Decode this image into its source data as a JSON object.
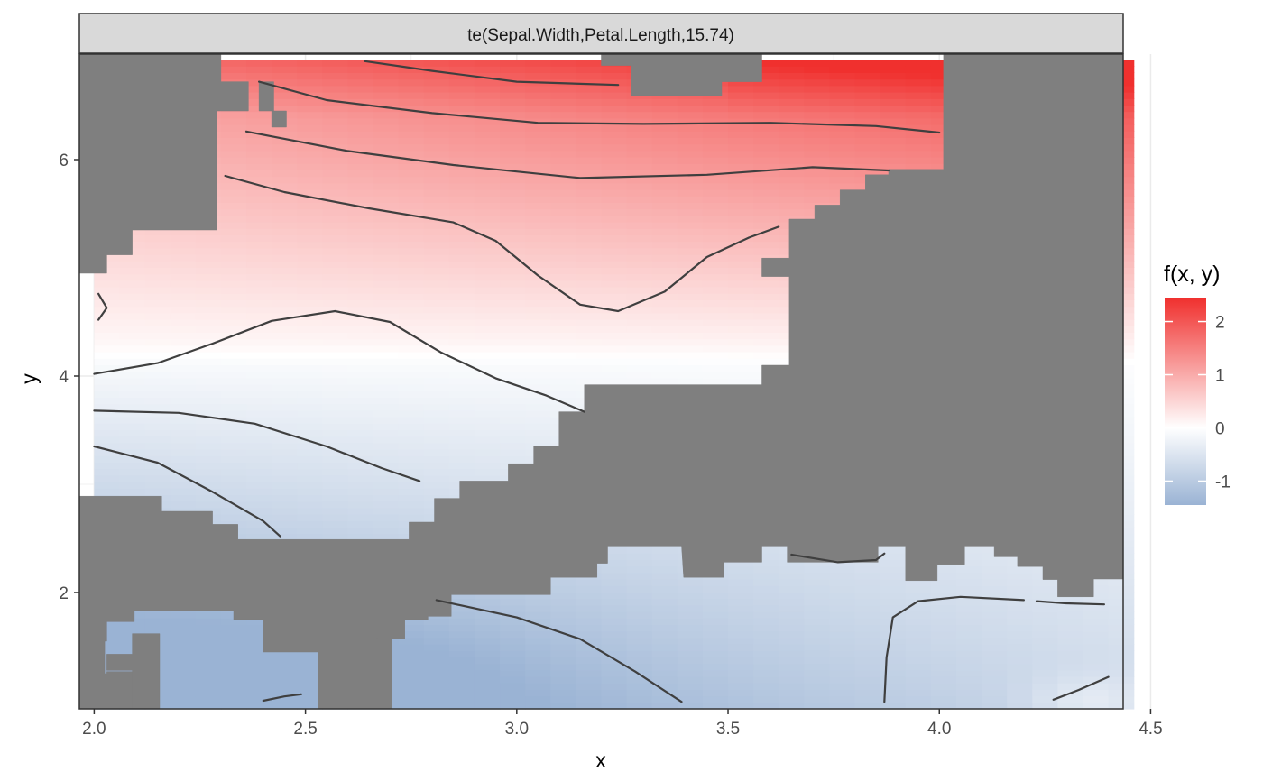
{
  "chart_data": {
    "type": "heatmap",
    "subtype": "smooth-term-contour",
    "facet_label": "te(Sepal.Width,Petal.Length,15.74)",
    "xlabel": "x",
    "ylabel": "y",
    "xlim": [
      1.965,
      4.435
    ],
    "ylim": [
      0.925,
      6.975
    ],
    "x_ticks": [
      2.0,
      2.5,
      3.0,
      3.5,
      4.0,
      4.5
    ],
    "x_tick_labels": [
      "2.0",
      "2.5",
      "3.0",
      "3.5",
      "4.0",
      "4.5"
    ],
    "y_ticks": [
      2,
      4,
      6
    ],
    "y_tick_labels": [
      "2",
      "4",
      "6"
    ],
    "grid": true,
    "grid_step": 0.06,
    "masked_color": "#7f7f7f",
    "legend": {
      "title": "f(x, y)",
      "position": "right",
      "min": -1.45,
      "max": 2.45,
      "ticks": [
        -1,
        0,
        1,
        2
      ],
      "tick_labels": [
        "-1",
        "0",
        "1",
        "2"
      ],
      "low_color": "#9ab3d4",
      "mid_color": "#ffffff",
      "high_color": "#f0302e"
    },
    "masked_regions": [
      [
        [
          1.965,
          6.975
        ],
        [
          2.3,
          6.975
        ],
        [
          2.3,
          6.72
        ],
        [
          2.365,
          6.72
        ],
        [
          2.365,
          6.45
        ],
        [
          2.29,
          6.45
        ],
        [
          2.29,
          5.35
        ],
        [
          2.09,
          5.35
        ],
        [
          2.09,
          5.12
        ],
        [
          2.03,
          5.12
        ],
        [
          2.03,
          4.95
        ],
        [
          1.965,
          4.95
        ]
      ],
      [
        [
          2.39,
          6.72
        ],
        [
          2.39,
          6.45
        ],
        [
          2.425,
          6.45
        ],
        [
          2.425,
          6.72
        ]
      ],
      [
        [
          2.42,
          6.45
        ],
        [
          2.42,
          6.3
        ],
        [
          2.455,
          6.3
        ],
        [
          2.455,
          6.45
        ]
      ],
      [
        [
          3.2,
          6.975
        ],
        [
          3.58,
          6.975
        ],
        [
          3.58,
          6.72
        ],
        [
          3.485,
          6.72
        ],
        [
          3.485,
          6.59
        ],
        [
          3.27,
          6.59
        ],
        [
          3.27,
          6.87
        ],
        [
          3.2,
          6.87
        ]
      ],
      [
        [
          4.01,
          6.975
        ],
        [
          4.435,
          6.975
        ],
        [
          4.435,
          2.125
        ],
        [
          4.365,
          2.125
        ],
        [
          4.365,
          1.96
        ],
        [
          4.28,
          1.96
        ],
        [
          4.28,
          2.12
        ],
        [
          4.245,
          2.12
        ],
        [
          4.245,
          2.24
        ],
        [
          4.185,
          2.24
        ],
        [
          4.185,
          2.33
        ],
        [
          4.13,
          2.33
        ],
        [
          4.13,
          2.43
        ],
        [
          4.06,
          2.43
        ],
        [
          4.06,
          2.26
        ],
        [
          3.995,
          2.26
        ],
        [
          3.995,
          2.11
        ],
        [
          3.92,
          2.11
        ],
        [
          3.92,
          2.43
        ],
        [
          3.855,
          2.43
        ],
        [
          3.855,
          2.28
        ],
        [
          3.64,
          2.28
        ],
        [
          3.64,
          2.43
        ],
        [
          3.58,
          2.43
        ],
        [
          3.58,
          2.28
        ],
        [
          3.49,
          2.28
        ],
        [
          3.49,
          2.14
        ],
        [
          3.395,
          2.14
        ],
        [
          3.395,
          2.14
        ],
        [
          3.39,
          2.43
        ],
        [
          3.215,
          2.43
        ],
        [
          3.215,
          2.27
        ],
        [
          3.19,
          2.27
        ],
        [
          3.19,
          2.14
        ],
        [
          3.08,
          2.14
        ],
        [
          3.08,
          1.98
        ],
        [
          2.845,
          1.98
        ],
        [
          2.845,
          1.78
        ],
        [
          2.79,
          1.78
        ],
        [
          2.79,
          1.75
        ],
        [
          2.735,
          1.75
        ],
        [
          2.735,
          1.57
        ],
        [
          2.67,
          1.57
        ],
        [
          2.67,
          1.58
        ],
        [
          2.705,
          1.58
        ],
        [
          2.705,
          0.925
        ],
        [
          2.53,
          0.925
        ],
        [
          2.53,
          1.45
        ],
        [
          2.4,
          1.45
        ],
        [
          2.4,
          1.75
        ],
        [
          2.33,
          1.75
        ],
        [
          2.33,
          1.83
        ],
        [
          2.095,
          1.83
        ],
        [
          2.095,
          1.73
        ],
        [
          2.03,
          1.73
        ],
        [
          2.03,
          1.55
        ],
        [
          2.025,
          1.55
        ],
        [
          2.025,
          1.25
        ],
        [
          2.03,
          1.25
        ],
        [
          2.03,
          1.27
        ],
        [
          2.09,
          1.27
        ],
        [
          2.09,
          1.1
        ],
        [
          2.09,
          0.925
        ],
        [
          1.965,
          0.925
        ],
        [
          1.965,
          2.89
        ],
        [
          2.16,
          2.89
        ],
        [
          2.16,
          2.75
        ],
        [
          2.28,
          2.75
        ],
        [
          2.28,
          2.63
        ],
        [
          2.34,
          2.63
        ],
        [
          2.34,
          2.49
        ],
        [
          2.745,
          2.49
        ],
        [
          2.745,
          2.65
        ],
        [
          2.805,
          2.65
        ],
        [
          2.805,
          2.87
        ],
        [
          2.865,
          2.87
        ],
        [
          2.865,
          3.03
        ],
        [
          2.98,
          3.03
        ],
        [
          2.98,
          3.19
        ],
        [
          3.04,
          3.19
        ],
        [
          3.04,
          3.35
        ],
        [
          3.1,
          3.35
        ],
        [
          3.1,
          3.67
        ],
        [
          3.16,
          3.67
        ],
        [
          3.16,
          3.92
        ],
        [
          3.58,
          3.92
        ],
        [
          3.58,
          4.1
        ],
        [
          3.645,
          4.1
        ],
        [
          3.645,
          4.92
        ],
        [
          3.58,
          4.92
        ],
        [
          3.58,
          5.09
        ],
        [
          3.645,
          5.09
        ],
        [
          3.645,
          5.45
        ],
        [
          3.705,
          5.45
        ],
        [
          3.705,
          5.58
        ],
        [
          3.765,
          5.58
        ],
        [
          3.765,
          5.72
        ],
        [
          3.825,
          5.72
        ],
        [
          3.825,
          5.86
        ],
        [
          3.88,
          5.86
        ],
        [
          3.88,
          5.91
        ],
        [
          4.01,
          5.91
        ]
      ],
      [
        [
          2.09,
          0.925
        ],
        [
          2.09,
          1.28
        ],
        [
          2.03,
          1.28
        ],
        [
          2.03,
          1.43
        ],
        [
          2.09,
          1.43
        ],
        [
          2.09,
          1.62
        ],
        [
          2.155,
          1.62
        ],
        [
          2.155,
          0.925
        ]
      ]
    ],
    "contour_lines": [
      [
        [
          2.64,
          6.91
        ],
        [
          2.8,
          6.82
        ],
        [
          3.0,
          6.72
        ],
        [
          3.24,
          6.69
        ]
      ],
      [
        [
          2.39,
          6.72
        ],
        [
          2.55,
          6.55
        ],
        [
          2.8,
          6.43
        ],
        [
          3.05,
          6.34
        ],
        [
          3.3,
          6.33
        ],
        [
          3.6,
          6.34
        ],
        [
          3.85,
          6.31
        ],
        [
          4.0,
          6.25
        ]
      ],
      [
        [
          2.36,
          6.26
        ],
        [
          2.6,
          6.08
        ],
        [
          2.85,
          5.95
        ],
        [
          3.15,
          5.83
        ],
        [
          3.45,
          5.86
        ],
        [
          3.7,
          5.93
        ],
        [
          3.88,
          5.9
        ]
      ],
      [
        [
          2.31,
          5.85
        ],
        [
          2.45,
          5.7
        ],
        [
          2.65,
          5.55
        ],
        [
          2.85,
          5.42
        ],
        [
          2.95,
          5.25
        ],
        [
          3.05,
          4.93
        ],
        [
          3.15,
          4.66
        ],
        [
          3.24,
          4.6
        ],
        [
          3.35,
          4.78
        ],
        [
          3.45,
          5.1
        ],
        [
          3.55,
          5.28
        ],
        [
          3.62,
          5.38
        ]
      ],
      [
        [
          2.01,
          4.76
        ],
        [
          2.03,
          4.63
        ],
        [
          2.01,
          4.52
        ]
      ],
      [
        [
          2.0,
          4.02
        ],
        [
          2.15,
          4.12
        ],
        [
          2.28,
          4.3
        ],
        [
          2.42,
          4.51
        ],
        [
          2.57,
          4.6
        ],
        [
          2.7,
          4.5
        ],
        [
          2.82,
          4.22
        ],
        [
          2.95,
          3.98
        ],
        [
          3.07,
          3.82
        ],
        [
          3.16,
          3.67
        ]
      ],
      [
        [
          2.0,
          3.68
        ],
        [
          2.2,
          3.66
        ],
        [
          2.38,
          3.56
        ],
        [
          2.55,
          3.35
        ],
        [
          2.68,
          3.15
        ],
        [
          2.77,
          3.03
        ]
      ],
      [
        [
          2.0,
          3.35
        ],
        [
          2.15,
          3.2
        ],
        [
          2.28,
          2.93
        ],
        [
          2.4,
          2.66
        ],
        [
          2.44,
          2.52
        ]
      ],
      [
        [
          2.81,
          1.93
        ],
        [
          3.0,
          1.77
        ],
        [
          3.15,
          1.57
        ],
        [
          3.28,
          1.27
        ],
        [
          3.39,
          0.99
        ]
      ],
      [
        [
          3.65,
          2.35
        ],
        [
          3.76,
          2.28
        ],
        [
          3.85,
          2.3
        ],
        [
          3.87,
          2.36
        ]
      ],
      [
        [
          3.87,
          0.99
        ],
        [
          3.875,
          1.4
        ],
        [
          3.89,
          1.77
        ],
        [
          3.95,
          1.92
        ],
        [
          4.05,
          1.96
        ],
        [
          4.2,
          1.93
        ]
      ],
      [
        [
          4.23,
          1.92
        ],
        [
          4.3,
          1.9
        ],
        [
          4.39,
          1.89
        ]
      ],
      [
        [
          2.4,
          1.0
        ],
        [
          2.45,
          1.04
        ],
        [
          2.49,
          1.06
        ]
      ],
      [
        [
          4.27,
          1.01
        ],
        [
          4.33,
          1.1
        ],
        [
          4.4,
          1.22
        ]
      ]
    ]
  }
}
